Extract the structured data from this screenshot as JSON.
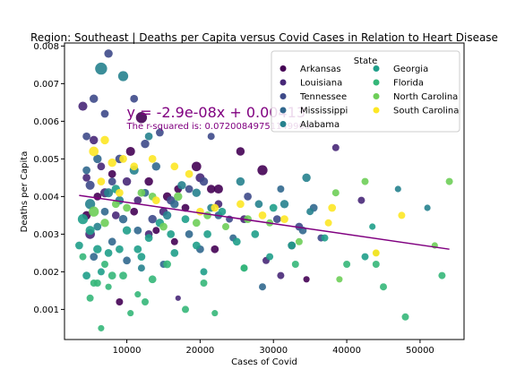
{
  "chart_data": {
    "type": "scatter",
    "title": "Region:  Southeast | Deaths per Capita versus Covid Cases in Relation to Heart Disease",
    "xlabel": "Cases of Covid",
    "ylabel": "Deaths per Capita",
    "xlim": [
      1500,
      56000
    ],
    "ylim": [
      0.0002,
      0.00808
    ],
    "x_ticks": [
      10000,
      20000,
      30000,
      40000,
      50000
    ],
    "y_ticks": [
      0.001,
      0.002,
      0.003,
      0.004,
      0.005,
      0.006,
      0.007,
      0.008
    ],
    "grid": false,
    "legend": {
      "title": "State",
      "placement": "top-right",
      "columns": 2
    },
    "series": [
      {
        "name": "Arkansas",
        "color": "#440154",
        "points": [
          [
            8000,
            0.0046,
            60
          ],
          [
            10500,
            0.0052,
            80
          ],
          [
            12000,
            0.0061,
            120
          ],
          [
            15500,
            0.004,
            70
          ],
          [
            17000,
            0.0042,
            60
          ],
          [
            19500,
            0.0048,
            90
          ],
          [
            21500,
            0.0042,
            70
          ],
          [
            22000,
            0.0026,
            60
          ],
          [
            22500,
            0.0042,
            80
          ],
          [
            28500,
            0.0047,
            100
          ],
          [
            4500,
            0.0035,
            70
          ],
          [
            6000,
            0.004,
            60
          ],
          [
            9000,
            0.0012,
            50
          ],
          [
            11000,
            0.0036,
            60
          ],
          [
            13000,
            0.0044,
            70
          ],
          [
            25500,
            0.0052,
            70
          ],
          [
            34500,
            0.0018,
            40
          ],
          [
            14000,
            0.0031,
            50
          ],
          [
            18000,
            0.0037,
            60
          ],
          [
            16500,
            0.0028,
            50
          ]
        ]
      },
      {
        "name": "Louisiana",
        "color": "#482878",
        "points": [
          [
            4000,
            0.0064,
            80
          ],
          [
            4500,
            0.0045,
            60
          ],
          [
            5000,
            0.003,
            90
          ],
          [
            5500,
            0.0055,
            70
          ],
          [
            6500,
            0.0048,
            60
          ],
          [
            7000,
            0.0041,
            80
          ],
          [
            8500,
            0.0035,
            60
          ],
          [
            10000,
            0.0044,
            70
          ],
          [
            11500,
            0.0039,
            60
          ],
          [
            13000,
            0.003,
            60
          ],
          [
            15000,
            0.0036,
            70
          ],
          [
            17000,
            0.0013,
            30
          ],
          [
            20000,
            0.0045,
            80
          ],
          [
            22500,
            0.0038,
            60
          ],
          [
            26000,
            0.0034,
            60
          ],
          [
            29000,
            0.0023,
            50
          ],
          [
            32500,
            0.0027,
            60
          ],
          [
            38500,
            0.0053,
            50
          ],
          [
            42000,
            0.0039,
            50
          ],
          [
            31000,
            0.0019,
            50
          ]
        ]
      },
      {
        "name": "Tennessee",
        "color": "#3e4a89",
        "points": [
          [
            4500,
            0.0056,
            60
          ],
          [
            5500,
            0.0066,
            70
          ],
          [
            7000,
            0.0062,
            60
          ],
          [
            7500,
            0.0078,
            70
          ],
          [
            9000,
            0.005,
            70
          ],
          [
            11000,
            0.0066,
            60
          ],
          [
            12500,
            0.0054,
            70
          ],
          [
            14500,
            0.0057,
            60
          ],
          [
            16000,
            0.0039,
            70
          ],
          [
            18500,
            0.0042,
            60
          ],
          [
            20500,
            0.0044,
            70
          ],
          [
            21500,
            0.0056,
            50
          ],
          [
            24000,
            0.0034,
            50
          ],
          [
            26500,
            0.004,
            60
          ],
          [
            30500,
            0.0034,
            60
          ],
          [
            33500,
            0.0032,
            60
          ],
          [
            36500,
            0.0029,
            50
          ],
          [
            5000,
            0.0043,
            80
          ],
          [
            8000,
            0.0044,
            60
          ],
          [
            13500,
            0.0034,
            70
          ]
        ]
      },
      {
        "name": "Mississippi",
        "color": "#31688e",
        "points": [
          [
            4500,
            0.0047,
            60
          ],
          [
            6000,
            0.005,
            70
          ],
          [
            7000,
            0.0036,
            60
          ],
          [
            8000,
            0.0028,
            60
          ],
          [
            9500,
            0.0034,
            70
          ],
          [
            11500,
            0.0031,
            60
          ],
          [
            12500,
            0.0041,
            60
          ],
          [
            14000,
            0.0048,
            70
          ],
          [
            16500,
            0.0038,
            70
          ],
          [
            18500,
            0.003,
            60
          ],
          [
            20000,
            0.0026,
            60
          ],
          [
            22500,
            0.0035,
            60
          ],
          [
            28500,
            0.0016,
            50
          ],
          [
            31000,
            0.0042,
            50
          ],
          [
            34000,
            0.0031,
            60
          ],
          [
            35500,
            0.0037,
            60
          ],
          [
            5500,
            0.0024,
            60
          ],
          [
            10000,
            0.0023,
            60
          ],
          [
            15000,
            0.0022,
            50
          ],
          [
            24500,
            0.0029,
            50
          ]
        ]
      },
      {
        "name": "Alabama",
        "color": "#26828e",
        "points": [
          [
            6500,
            0.0074,
            140
          ],
          [
            9500,
            0.0072,
            100
          ],
          [
            5000,
            0.0038,
            100
          ],
          [
            7500,
            0.0041,
            80
          ],
          [
            9000,
            0.0039,
            70
          ],
          [
            11000,
            0.0047,
            80
          ],
          [
            13000,
            0.0056,
            60
          ],
          [
            15500,
            0.0035,
            70
          ],
          [
            17500,
            0.0043,
            70
          ],
          [
            19500,
            0.0041,
            70
          ],
          [
            21500,
            0.0037,
            60
          ],
          [
            25500,
            0.0044,
            70
          ],
          [
            28000,
            0.0038,
            60
          ],
          [
            31500,
            0.0038,
            70
          ],
          [
            34500,
            0.0045,
            70
          ],
          [
            35000,
            0.0036,
            50
          ],
          [
            47000,
            0.0042,
            40
          ],
          [
            51000,
            0.0037,
            40
          ],
          [
            6000,
            0.0032,
            60
          ],
          [
            12000,
            0.0021,
            50
          ]
        ]
      },
      {
        "name": "Georgia",
        "color": "#1f9e89",
        "points": [
          [
            4000,
            0.0034,
            100
          ],
          [
            5000,
            0.0031,
            80
          ],
          [
            6000,
            0.0026,
            70
          ],
          [
            7500,
            0.0025,
            60
          ],
          [
            8500,
            0.0042,
            70
          ],
          [
            10000,
            0.0031,
            70
          ],
          [
            11500,
            0.0026,
            60
          ],
          [
            13000,
            0.0029,
            60
          ],
          [
            14500,
            0.0033,
            70
          ],
          [
            16000,
            0.003,
            60
          ],
          [
            18000,
            0.0034,
            60
          ],
          [
            19500,
            0.0027,
            60
          ],
          [
            21000,
            0.003,
            60
          ],
          [
            23000,
            0.0036,
            60
          ],
          [
            25000,
            0.0028,
            60
          ],
          [
            27500,
            0.003,
            60
          ],
          [
            30000,
            0.0037,
            60
          ],
          [
            32500,
            0.0027,
            60
          ],
          [
            37000,
            0.0029,
            50
          ],
          [
            42500,
            0.0024,
            50
          ],
          [
            4500,
            0.0019,
            60
          ],
          [
            6500,
            0.002,
            50
          ],
          [
            9000,
            0.0026,
            60
          ],
          [
            12000,
            0.0024,
            60
          ],
          [
            16500,
            0.0025,
            60
          ],
          [
            20500,
            0.002,
            50
          ],
          [
            26000,
            0.0021,
            50
          ],
          [
            29500,
            0.0024,
            50
          ],
          [
            43500,
            0.0032,
            40
          ],
          [
            3500,
            0.0027,
            60
          ]
        ]
      },
      {
        "name": "Florida",
        "color": "#35b779",
        "points": [
          [
            4000,
            0.0024,
            50
          ],
          [
            5000,
            0.0013,
            50
          ],
          [
            6000,
            0.0017,
            50
          ],
          [
            7000,
            0.0022,
            50
          ],
          [
            8000,
            0.0019,
            60
          ],
          [
            9500,
            0.0019,
            60
          ],
          [
            10500,
            0.0009,
            40
          ],
          [
            11500,
            0.0014,
            40
          ],
          [
            12500,
            0.0012,
            50
          ],
          [
            13500,
            0.0018,
            60
          ],
          [
            15500,
            0.0022,
            60
          ],
          [
            18000,
            0.001,
            50
          ],
          [
            20500,
            0.0017,
            50
          ],
          [
            22000,
            0.0009,
            40
          ],
          [
            26000,
            0.0021,
            50
          ],
          [
            33000,
            0.0022,
            50
          ],
          [
            40000,
            0.0022,
            50
          ],
          [
            44000,
            0.0022,
            50
          ],
          [
            45000,
            0.0016,
            50
          ],
          [
            48000,
            0.0008,
            50
          ],
          [
            53000,
            0.0019,
            50
          ],
          [
            6500,
            0.0005,
            40
          ],
          [
            7500,
            0.0016,
            40
          ],
          [
            5500,
            0.0017,
            50
          ]
        ]
      },
      {
        "name": "North Carolina",
        "color": "#6ece58",
        "points": [
          [
            5500,
            0.0036,
            100
          ],
          [
            7000,
            0.0033,
            70
          ],
          [
            8500,
            0.0038,
            60
          ],
          [
            10000,
            0.0037,
            60
          ],
          [
            12000,
            0.0041,
            60
          ],
          [
            13500,
            0.004,
            60
          ],
          [
            15000,
            0.0032,
            60
          ],
          [
            17000,
            0.004,
            70
          ],
          [
            19500,
            0.0033,
            60
          ],
          [
            21000,
            0.0035,
            60
          ],
          [
            23500,
            0.0032,
            50
          ],
          [
            26500,
            0.0034,
            60
          ],
          [
            29500,
            0.0033,
            50
          ],
          [
            33500,
            0.0028,
            50
          ],
          [
            38500,
            0.0041,
            50
          ],
          [
            42500,
            0.0044,
            50
          ],
          [
            54000,
            0.0044,
            50
          ],
          [
            44000,
            0.0025,
            40
          ],
          [
            52000,
            0.0027,
            40
          ],
          [
            39000,
            0.0018,
            40
          ]
        ]
      },
      {
        "name": "South Carolina",
        "color": "#fde725",
        "points": [
          [
            5500,
            0.0052,
            90
          ],
          [
            7000,
            0.0055,
            70
          ],
          [
            8000,
            0.0049,
            70
          ],
          [
            9500,
            0.005,
            60
          ],
          [
            11000,
            0.0048,
            60
          ],
          [
            13500,
            0.005,
            60
          ],
          [
            16500,
            0.0048,
            60
          ],
          [
            18500,
            0.0046,
            60
          ],
          [
            20000,
            0.0036,
            60
          ],
          [
            22000,
            0.0037,
            60
          ],
          [
            25500,
            0.0038,
            60
          ],
          [
            28500,
            0.0035,
            60
          ],
          [
            31500,
            0.0034,
            60
          ],
          [
            38000,
            0.0037,
            60
          ],
          [
            47500,
            0.0035,
            50
          ],
          [
            6500,
            0.0044,
            60
          ],
          [
            9000,
            0.0041,
            60
          ],
          [
            14000,
            0.0039,
            60
          ],
          [
            37500,
            0.0033,
            50
          ],
          [
            44000,
            0.0025,
            50
          ]
        ]
      }
    ],
    "regression": {
      "color": "#800080",
      "x_start": 3500,
      "y_start": 0.00403,
      "x_end": 54000,
      "y_end": 0.0026,
      "equation_label": "y = -2.9e-08x + 0.00413",
      "equation_anchor": [
        10000,
        0.0061
      ],
      "r2_label": "The r-squared is: 0.07200849751149903",
      "r2_anchor": [
        10000,
        0.0058
      ]
    }
  }
}
